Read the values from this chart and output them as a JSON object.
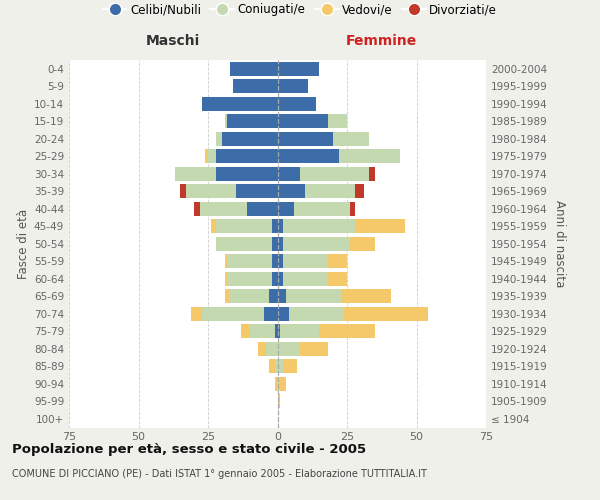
{
  "age_groups": [
    "0-4",
    "5-9",
    "10-14",
    "15-19",
    "20-24",
    "25-29",
    "30-34",
    "35-39",
    "40-44",
    "45-49",
    "50-54",
    "55-59",
    "60-64",
    "65-69",
    "70-74",
    "75-79",
    "80-84",
    "85-89",
    "90-94",
    "95-99",
    "100+"
  ],
  "years": [
    "2000-2004",
    "1995-1999",
    "1990-1994",
    "1985-1989",
    "1980-1984",
    "1975-1979",
    "1970-1974",
    "1965-1969",
    "1960-1964",
    "1955-1959",
    "1950-1954",
    "1945-1949",
    "1940-1944",
    "1935-1939",
    "1930-1934",
    "1925-1929",
    "1920-1924",
    "1915-1919",
    "1910-1914",
    "1905-1909",
    "≤ 1904"
  ],
  "maschi": {
    "celibi": [
      17,
      16,
      27,
      18,
      20,
      22,
      22,
      15,
      11,
      2,
      2,
      2,
      2,
      3,
      5,
      1,
      0,
      0,
      0,
      0,
      0
    ],
    "coniugati": [
      0,
      0,
      0,
      1,
      2,
      3,
      15,
      18,
      17,
      20,
      20,
      16,
      16,
      14,
      22,
      9,
      4,
      1,
      0,
      0,
      0
    ],
    "vedovi": [
      0,
      0,
      0,
      0,
      0,
      1,
      0,
      0,
      0,
      2,
      0,
      1,
      1,
      2,
      4,
      3,
      3,
      2,
      1,
      0,
      0
    ],
    "divorziati": [
      0,
      0,
      0,
      0,
      0,
      0,
      0,
      2,
      2,
      0,
      0,
      0,
      0,
      0,
      0,
      0,
      0,
      0,
      0,
      0,
      0
    ]
  },
  "femmine": {
    "nubili": [
      15,
      11,
      14,
      18,
      20,
      22,
      8,
      10,
      6,
      2,
      2,
      2,
      2,
      3,
      4,
      1,
      0,
      0,
      0,
      0,
      0
    ],
    "coniugate": [
      0,
      0,
      0,
      7,
      13,
      22,
      25,
      18,
      20,
      26,
      24,
      16,
      16,
      20,
      20,
      14,
      8,
      2,
      1,
      0,
      0
    ],
    "vedove": [
      0,
      0,
      0,
      0,
      0,
      0,
      0,
      0,
      0,
      18,
      9,
      7,
      7,
      18,
      30,
      20,
      10,
      5,
      2,
      1,
      0
    ],
    "divorziate": [
      0,
      0,
      0,
      0,
      0,
      0,
      2,
      3,
      2,
      0,
      0,
      0,
      0,
      0,
      0,
      0,
      0,
      0,
      0,
      0,
      0
    ]
  },
  "colors": {
    "celibi": "#3d6da8",
    "coniugati": "#c5d9b0",
    "vedovi": "#f5c96a",
    "divorziati": "#c0392b"
  },
  "title": "Popolazione per età, sesso e stato civile - 2005",
  "subtitle": "COMUNE DI PICCIANO (PE) - Dati ISTAT 1° gennaio 2005 - Elaborazione TUTTITALIA.IT",
  "xlabel_left": "Maschi",
  "xlabel_right": "Femmine",
  "ylabel_left": "Fasce di età",
  "ylabel_right": "Anni di nascita",
  "xlim": 75,
  "background_color": "#f0f0eb",
  "plot_background": "#ffffff"
}
